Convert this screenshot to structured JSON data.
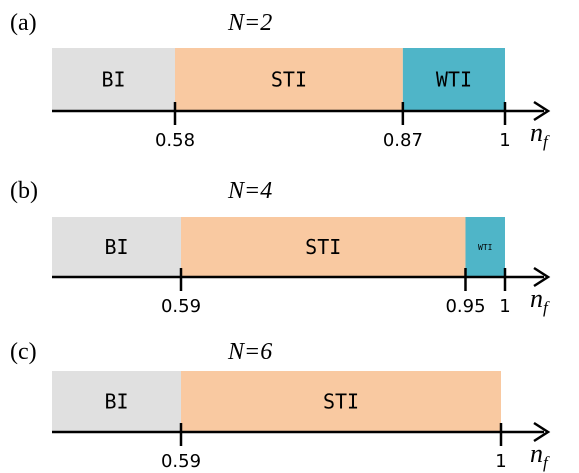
{
  "panels": [
    {
      "label": "(a)",
      "title": "N=2",
      "regions": [
        {
          "label": "BI",
          "start": 0.0,
          "end": 0.58,
          "color": "#e0e0e0"
        },
        {
          "label": "STI",
          "start": 0.58,
          "end": 0.87,
          "color": "#f9c9a1"
        },
        {
          "label": "WTI",
          "start": 0.87,
          "end": 1.0,
          "color": "#4fb5c8"
        }
      ],
      "ticks": [
        {
          "value": 0.58,
          "label": "0.58"
        },
        {
          "value": 0.87,
          "label": "0.87"
        },
        {
          "value": 1.0,
          "label": "1"
        }
      ],
      "axis_label": "n",
      "axis_subscript": "f"
    },
    {
      "label": "(b)",
      "title": "N=4",
      "regions": [
        {
          "label": "BI",
          "start": 0.0,
          "end": 0.59,
          "color": "#e0e0e0"
        },
        {
          "label": "STI",
          "start": 0.59,
          "end": 0.95,
          "color": "#f9c9a1"
        },
        {
          "label": "WTI",
          "start": 0.95,
          "end": 1.0,
          "color": "#4fb5c8"
        }
      ],
      "ticks": [
        {
          "value": 0.59,
          "label": "0.59"
        },
        {
          "value": 0.95,
          "label": "0.95"
        },
        {
          "value": 1.0,
          "label": "1"
        }
      ],
      "axis_label": "n",
      "axis_subscript": "f"
    },
    {
      "label": "(c)",
      "title": "N=6",
      "regions": [
        {
          "label": "BI",
          "start": 0.0,
          "end": 0.59,
          "color": "#e0e0e0"
        },
        {
          "label": "STI",
          "start": 0.59,
          "end": 1.0,
          "color": "#f9c9a1"
        }
      ],
      "ticks": [
        {
          "value": 0.59,
          "label": "0.59"
        },
        {
          "value": 1.0,
          "label": "1"
        }
      ],
      "axis_label": "n",
      "axis_subscript": "f"
    }
  ]
}
